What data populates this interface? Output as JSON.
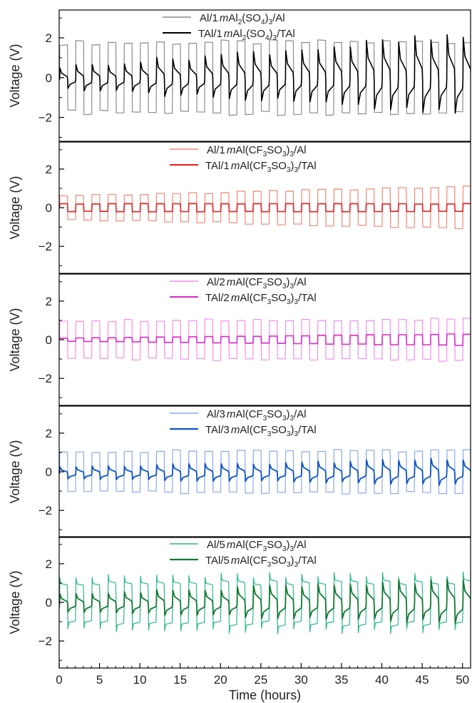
{
  "chart_data": {
    "type": "line",
    "xlabel": "Time (hours)",
    "xlim": [
      0,
      51
    ],
    "xticks": [
      0,
      5,
      10,
      15,
      20,
      25,
      30,
      35,
      40,
      45,
      50
    ],
    "shared_x_axis": true,
    "legend_placement": "top-center",
    "grid": false,
    "panels": [
      {
        "ylabel": "Voltage (V)",
        "ylim": [
          -3.2,
          3.4
        ],
        "yticks": [
          -2,
          0,
          2
        ],
        "series": [
          {
            "name": "Al/1 m Al2(SO4)3/Al",
            "legend_parts": [
              "Al/1",
              "m",
              "Al",
              "2",
              "(SO",
              "4",
              ")",
              "3",
              "/Al"
            ],
            "color": "#8c8c8c",
            "width": 1.2,
            "kind": "square",
            "amp_start": 1.75,
            "amp_end": 1.8,
            "bias": 0.0
          },
          {
            "name": "TAl/1 m Al2(SO4)3/TAl",
            "legend_parts": [
              "TAl/1",
              "m",
              "Al",
              "2",
              "(SO",
              "4",
              ")",
              "3",
              "/TAl"
            ],
            "color": "#000000",
            "width": 1.6,
            "kind": "spike",
            "amp_start": 0.55,
            "amp_end": 1.9,
            "bias": -0.1
          }
        ]
      },
      {
        "ylabel": "Voltage (V)",
        "ylim": [
          -3.4,
          3.4
        ],
        "yticks": [
          -2,
          0,
          2
        ],
        "series": [
          {
            "name": "Al/1 m Al(CF3SO3)3/Al",
            "legend_parts": [
              "Al/1",
              "m",
              "Al(CF",
              "3",
              "SO",
              "3",
              ")",
              "3",
              "/Al"
            ],
            "color": "#f08878",
            "width": 1.2,
            "kind": "square",
            "amp_start": 0.6,
            "amp_end": 1.1,
            "bias": 0.0
          },
          {
            "name": "TAl/1 m Al(CF3SO3)3/TAl",
            "legend_parts": [
              "TAl/1",
              "m",
              "Al(CF",
              "3",
              "SO",
              "3",
              ")",
              "3",
              "/TAl"
            ],
            "color": "#e81c1c",
            "width": 1.6,
            "kind": "square",
            "amp_start": 0.2,
            "amp_end": 0.2,
            "bias": 0.0
          }
        ]
      },
      {
        "ylabel": "Voltage (V)",
        "ylim": [
          -3.4,
          3.4
        ],
        "yticks": [
          -2,
          0,
          2
        ],
        "series": [
          {
            "name": "Al/2 m Al(CF3SO3)3/Al",
            "legend_parts": [
              "Al/2",
              "m",
              "Al(CF",
              "3",
              "SO",
              "3",
              ")",
              "3",
              "/Al"
            ],
            "color": "#f48cf0",
            "width": 1.2,
            "kind": "square",
            "amp_start": 1.0,
            "amp_end": 1.05,
            "bias": 0.0
          },
          {
            "name": "TAl/2 m Al(CF3SO3)3/TAl",
            "legend_parts": [
              "TAl/2",
              "m",
              "Al(CF",
              "3",
              "SO",
              "3",
              ")",
              "3",
              "/TAl"
            ],
            "color": "#de28c8",
            "width": 1.6,
            "kind": "square",
            "amp_start": 0.08,
            "amp_end": 0.3,
            "bias": 0.0
          }
        ]
      },
      {
        "ylabel": "Voltage (V)",
        "ylim": [
          -3.4,
          3.4
        ],
        "yticks": [
          -2,
          0,
          2
        ],
        "series": [
          {
            "name": "Al/3 m Al(CF3SO3)3/Al",
            "legend_parts": [
              "Al/3",
              "m",
              "Al(CF",
              "3",
              "SO",
              "3",
              ")",
              "3",
              "/Al"
            ],
            "color": "#8aa8f0",
            "width": 1.2,
            "kind": "square",
            "amp_start": 1.05,
            "amp_end": 1.1,
            "bias": 0.0
          },
          {
            "name": "TAl/3 m Al(CF3SO3)3/TAl",
            "legend_parts": [
              "TAl/3",
              "m",
              "Al(CF",
              "3",
              "SO",
              "3",
              ")",
              "3",
              "/TAl"
            ],
            "color": "#0a52cc",
            "width": 1.8,
            "kind": "spike",
            "amp_start": 0.3,
            "amp_end": 0.65,
            "bias": -0.1
          }
        ]
      },
      {
        "ylabel": "Voltage (V)",
        "ylim": [
          -3.4,
          3.4
        ],
        "yticks": [
          -2,
          0,
          2
        ],
        "series": [
          {
            "name": "Al/5 m Al(CF3SO3)3/Al",
            "legend_parts": [
              "Al/5",
              "m",
              "Al(CF",
              "3",
              "SO",
              "3",
              ")",
              "3",
              "/Al"
            ],
            "color": "#2cb88c",
            "width": 1.2,
            "kind": "spikywide",
            "amp_start": 1.2,
            "amp_end": 1.3,
            "bias": 0.0
          },
          {
            "name": "TAl/5 m Al(CF3SO3)3/TAl",
            "legend_parts": [
              "TAl/5",
              "m",
              "Al(CF",
              "3",
              "SO",
              "3",
              ")",
              "3",
              "/TAl"
            ],
            "color": "#0f7a32",
            "width": 1.8,
            "kind": "spike",
            "amp_start": 0.45,
            "amp_end": 1.1,
            "bias": -0.1
          }
        ]
      }
    ],
    "cycle_period_hours": 2
  }
}
